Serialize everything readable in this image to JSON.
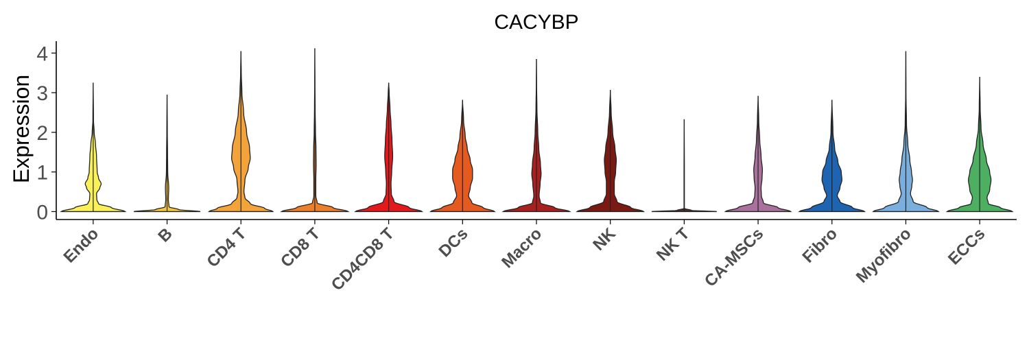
{
  "chart_data": {
    "type": "violin",
    "title": "CACYBP",
    "xlabel": "",
    "ylabel": "Expression",
    "ylim": [
      -0.2,
      4.3
    ],
    "yticks": [
      0,
      1,
      2,
      3,
      4
    ],
    "grid": false,
    "categories": [
      "Endo",
      "B",
      "CD4 T",
      "CD8 T",
      "CD4CD8 T",
      "DCs",
      "Macro",
      "NK",
      "NK T",
      "CA-MSCs",
      "Fibro",
      "Myofibro",
      "ECCs"
    ],
    "colors": [
      "#f9f05a",
      "#f4c63a",
      "#f2a33a",
      "#ec7f2a",
      "#e31a1c",
      "#e55a1e",
      "#a82020",
      "#7a1a12",
      "#4a2c2a",
      "#a9719c",
      "#1f64b0",
      "#7aaedc",
      "#4daf61"
    ],
    "series": [
      {
        "name": "Endo",
        "max": 3.25,
        "profile": [
          [
            0,
            0.96
          ],
          [
            0.1,
            0.55
          ],
          [
            0.2,
            0.16
          ],
          [
            0.3,
            0.11
          ],
          [
            0.45,
            0.1
          ],
          [
            0.6,
            0.2
          ],
          [
            0.7,
            0.24
          ],
          [
            0.85,
            0.16
          ],
          [
            1.0,
            0.12
          ],
          [
            1.4,
            0.1
          ],
          [
            1.7,
            0.07
          ],
          [
            2.0,
            0.03
          ],
          [
            2.3,
            0.01
          ],
          [
            3.25,
            0.0
          ]
        ]
      },
      {
        "name": "B",
        "max": 2.95,
        "profile": [
          [
            0,
            1.0
          ],
          [
            0.05,
            0.35
          ],
          [
            0.12,
            0.06
          ],
          [
            0.3,
            0.04
          ],
          [
            0.6,
            0.05
          ],
          [
            1.0,
            0.02
          ],
          [
            1.5,
            0.015
          ],
          [
            2.0,
            0.008
          ],
          [
            2.95,
            0.0
          ]
        ]
      },
      {
        "name": "CD4 T",
        "max": 4.05,
        "profile": [
          [
            0,
            0.96
          ],
          [
            0.08,
            0.72
          ],
          [
            0.2,
            0.28
          ],
          [
            0.35,
            0.12
          ],
          [
            0.5,
            0.09
          ],
          [
            0.8,
            0.12
          ],
          [
            1.1,
            0.22
          ],
          [
            1.35,
            0.28
          ],
          [
            1.6,
            0.26
          ],
          [
            2.0,
            0.17
          ],
          [
            2.5,
            0.08
          ],
          [
            3.0,
            0.03
          ],
          [
            3.5,
            0.01
          ],
          [
            4.05,
            0.0
          ]
        ]
      },
      {
        "name": "CD8 T",
        "max": 4.12,
        "profile": [
          [
            0,
            1.0
          ],
          [
            0.1,
            0.55
          ],
          [
            0.22,
            0.07
          ],
          [
            0.4,
            0.03
          ],
          [
            0.8,
            0.03
          ],
          [
            1.2,
            0.04
          ],
          [
            1.6,
            0.035
          ],
          [
            2.0,
            0.02
          ],
          [
            2.6,
            0.01
          ],
          [
            3.2,
            0.005
          ],
          [
            4.12,
            0.0
          ]
        ]
      },
      {
        "name": "CD4CD8 T",
        "max": 3.25,
        "profile": [
          [
            0,
            1.0
          ],
          [
            0.1,
            0.62
          ],
          [
            0.25,
            0.16
          ],
          [
            0.45,
            0.08
          ],
          [
            0.7,
            0.07
          ],
          [
            1.0,
            0.09
          ],
          [
            1.4,
            0.12
          ],
          [
            1.8,
            0.1
          ],
          [
            2.2,
            0.07
          ],
          [
            2.6,
            0.04
          ],
          [
            3.0,
            0.015
          ],
          [
            3.25,
            0.0
          ]
        ]
      },
      {
        "name": "DCs",
        "max": 2.82,
        "profile": [
          [
            0,
            0.96
          ],
          [
            0.1,
            0.62
          ],
          [
            0.22,
            0.28
          ],
          [
            0.4,
            0.18
          ],
          [
            0.6,
            0.23
          ],
          [
            0.85,
            0.3
          ],
          [
            1.05,
            0.3
          ],
          [
            1.3,
            0.23
          ],
          [
            1.6,
            0.14
          ],
          [
            1.9,
            0.08
          ],
          [
            2.3,
            0.03
          ],
          [
            2.82,
            0.0
          ]
        ]
      },
      {
        "name": "Macro",
        "max": 3.85,
        "profile": [
          [
            0,
            1.0
          ],
          [
            0.1,
            0.55
          ],
          [
            0.22,
            0.12
          ],
          [
            0.4,
            0.08
          ],
          [
            0.7,
            0.11
          ],
          [
            0.95,
            0.14
          ],
          [
            1.2,
            0.12
          ],
          [
            1.6,
            0.07
          ],
          [
            2.0,
            0.04
          ],
          [
            2.6,
            0.015
          ],
          [
            3.2,
            0.005
          ],
          [
            3.85,
            0.0
          ]
        ]
      },
      {
        "name": "NK",
        "max": 3.07,
        "profile": [
          [
            0,
            1.0
          ],
          [
            0.1,
            0.62
          ],
          [
            0.25,
            0.2
          ],
          [
            0.45,
            0.12
          ],
          [
            0.75,
            0.12
          ],
          [
            1.0,
            0.16
          ],
          [
            1.3,
            0.18
          ],
          [
            1.6,
            0.14
          ],
          [
            2.0,
            0.07
          ],
          [
            2.5,
            0.025
          ],
          [
            3.07,
            0.0
          ]
        ]
      },
      {
        "name": "NK T",
        "max": 2.33,
        "profile": [
          [
            0,
            0.98
          ],
          [
            0.03,
            0.22
          ],
          [
            0.08,
            0.006
          ],
          [
            1.0,
            0.006
          ],
          [
            2.33,
            0.0
          ]
        ]
      },
      {
        "name": "CA-MSCs",
        "max": 2.92,
        "profile": [
          [
            0,
            0.98
          ],
          [
            0.1,
            0.6
          ],
          [
            0.22,
            0.16
          ],
          [
            0.4,
            0.1
          ],
          [
            0.6,
            0.09
          ],
          [
            0.85,
            0.12
          ],
          [
            1.05,
            0.13
          ],
          [
            1.4,
            0.09
          ],
          [
            1.8,
            0.05
          ],
          [
            2.3,
            0.02
          ],
          [
            2.92,
            0.0
          ]
        ]
      },
      {
        "name": "Fibro",
        "max": 2.82,
        "profile": [
          [
            0,
            0.98
          ],
          [
            0.1,
            0.62
          ],
          [
            0.25,
            0.24
          ],
          [
            0.4,
            0.16
          ],
          [
            0.6,
            0.24
          ],
          [
            0.8,
            0.3
          ],
          [
            1.0,
            0.28
          ],
          [
            1.25,
            0.18
          ],
          [
            1.6,
            0.08
          ],
          [
            2.0,
            0.03
          ],
          [
            2.82,
            0.0
          ]
        ]
      },
      {
        "name": "Myofibro",
        "max": 4.05,
        "profile": [
          [
            0,
            0.98
          ],
          [
            0.1,
            0.64
          ],
          [
            0.25,
            0.22
          ],
          [
            0.45,
            0.14
          ],
          [
            0.65,
            0.18
          ],
          [
            0.8,
            0.2
          ],
          [
            1.0,
            0.17
          ],
          [
            1.3,
            0.12
          ],
          [
            1.7,
            0.06
          ],
          [
            2.2,
            0.02
          ],
          [
            3.0,
            0.005
          ],
          [
            4.05,
            0.0
          ]
        ]
      },
      {
        "name": "ECCs",
        "max": 3.4,
        "profile": [
          [
            0,
            0.98
          ],
          [
            0.1,
            0.62
          ],
          [
            0.2,
            0.26
          ],
          [
            0.35,
            0.22
          ],
          [
            0.55,
            0.3
          ],
          [
            0.8,
            0.34
          ],
          [
            1.0,
            0.3
          ],
          [
            1.3,
            0.2
          ],
          [
            1.7,
            0.1
          ],
          [
            2.1,
            0.04
          ],
          [
            2.6,
            0.015
          ],
          [
            3.4,
            0.0
          ]
        ]
      }
    ]
  }
}
